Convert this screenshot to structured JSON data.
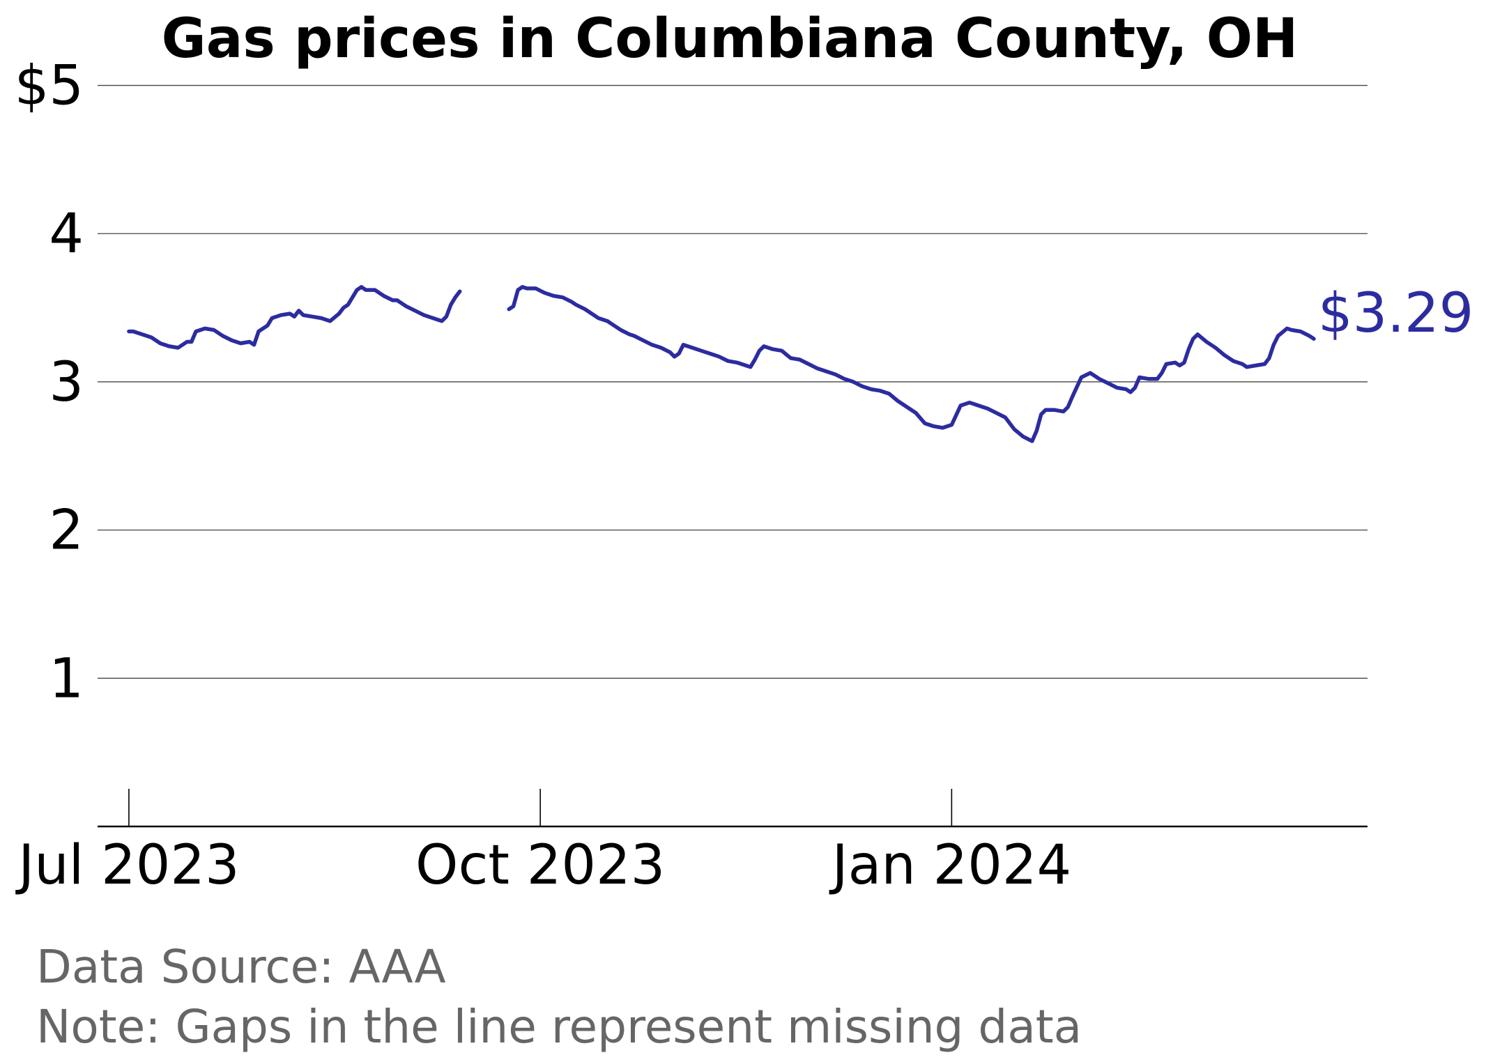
{
  "chart_data": {
    "type": "line",
    "title": "Gas prices in Columbiana County, OH",
    "xlabel": "",
    "ylabel": "",
    "ylim": [
      0,
      5.2
    ],
    "xlim": [
      "2023-06-24",
      "2024-04-03"
    ],
    "y_ticks": [
      {
        "value": 5,
        "label": "$5"
      },
      {
        "value": 4,
        "label": "4"
      },
      {
        "value": 3,
        "label": "3"
      },
      {
        "value": 2,
        "label": "2"
      },
      {
        "value": 1,
        "label": "1"
      }
    ],
    "x_ticks": [
      {
        "date": "2023-07-01",
        "label": "Jul 2023"
      },
      {
        "date": "2023-10-01",
        "label": "Oct 2023"
      },
      {
        "date": "2024-01-01",
        "label": "Jan 2024"
      }
    ],
    "grid": "horizontal",
    "legend": "none",
    "end_label": "$3.29",
    "series": [
      {
        "color": "#2c2ca0",
        "segments": [
          [
            [
              "2023-07-01",
              3.34
            ],
            [
              "2023-07-02",
              3.34
            ],
            [
              "2023-07-03",
              3.33
            ],
            [
              "2023-07-05",
              3.31
            ],
            [
              "2023-07-06",
              3.3
            ],
            [
              "2023-07-08",
              3.26
            ],
            [
              "2023-07-10",
              3.24
            ],
            [
              "2023-07-12",
              3.23
            ],
            [
              "2023-07-14",
              3.27
            ],
            [
              "2023-07-15",
              3.27
            ],
            [
              "2023-07-16",
              3.34
            ],
            [
              "2023-07-18",
              3.36
            ],
            [
              "2023-07-20",
              3.35
            ],
            [
              "2023-07-22",
              3.31
            ],
            [
              "2023-07-24",
              3.28
            ],
            [
              "2023-07-26",
              3.26
            ],
            [
              "2023-07-28",
              3.27
            ],
            [
              "2023-07-29",
              3.25
            ],
            [
              "2023-07-30",
              3.34
            ],
            [
              "2023-08-01",
              3.38
            ],
            [
              "2023-08-02",
              3.43
            ],
            [
              "2023-08-04",
              3.45
            ],
            [
              "2023-08-06",
              3.46
            ],
            [
              "2023-08-07",
              3.44
            ],
            [
              "2023-08-08",
              3.48
            ],
            [
              "2023-08-09",
              3.45
            ],
            [
              "2023-08-11",
              3.44
            ],
            [
              "2023-08-13",
              3.43
            ],
            [
              "2023-08-15",
              3.41
            ],
            [
              "2023-08-17",
              3.46
            ],
            [
              "2023-08-18",
              3.5
            ],
            [
              "2023-08-19",
              3.52
            ],
            [
              "2023-08-21",
              3.62
            ],
            [
              "2023-08-22",
              3.64
            ],
            [
              "2023-08-23",
              3.62
            ],
            [
              "2023-08-25",
              3.62
            ],
            [
              "2023-08-27",
              3.58
            ],
            [
              "2023-08-29",
              3.55
            ],
            [
              "2023-08-30",
              3.55
            ],
            [
              "2023-09-01",
              3.51
            ],
            [
              "2023-09-03",
              3.48
            ],
            [
              "2023-09-05",
              3.45
            ],
            [
              "2023-09-07",
              3.43
            ],
            [
              "2023-09-09",
              3.41
            ],
            [
              "2023-09-10",
              3.44
            ],
            [
              "2023-09-11",
              3.52
            ],
            [
              "2023-09-12",
              3.57
            ],
            [
              "2023-09-13",
              3.61
            ]
          ],
          [
            [
              "2023-09-24",
              3.49
            ],
            [
              "2023-09-25",
              3.51
            ],
            [
              "2023-09-26",
              3.62
            ],
            [
              "2023-09-27",
              3.64
            ],
            [
              "2023-09-28",
              3.63
            ],
            [
              "2023-09-30",
              3.63
            ],
            [
              "2023-10-02",
              3.6
            ],
            [
              "2023-10-04",
              3.58
            ],
            [
              "2023-10-06",
              3.57
            ],
            [
              "2023-10-08",
              3.54
            ],
            [
              "2023-10-09",
              3.52
            ],
            [
              "2023-10-11",
              3.49
            ],
            [
              "2023-10-13",
              3.45
            ],
            [
              "2023-10-14",
              3.43
            ],
            [
              "2023-10-16",
              3.41
            ],
            [
              "2023-10-17",
              3.39
            ],
            [
              "2023-10-19",
              3.35
            ],
            [
              "2023-10-21",
              3.32
            ],
            [
              "2023-10-22",
              3.31
            ],
            [
              "2023-10-24",
              3.28
            ],
            [
              "2023-10-26",
              3.25
            ],
            [
              "2023-10-28",
              3.23
            ],
            [
              "2023-10-30",
              3.2
            ],
            [
              "2023-10-31",
              3.17
            ],
            [
              "2023-11-01",
              3.19
            ],
            [
              "2023-11-02",
              3.25
            ],
            [
              "2023-11-04",
              3.23
            ],
            [
              "2023-11-06",
              3.21
            ],
            [
              "2023-11-08",
              3.19
            ],
            [
              "2023-11-10",
              3.17
            ],
            [
              "2023-11-12",
              3.14
            ],
            [
              "2023-11-14",
              3.13
            ],
            [
              "2023-11-16",
              3.11
            ],
            [
              "2023-11-17",
              3.1
            ],
            [
              "2023-11-18",
              3.15
            ],
            [
              "2023-11-19",
              3.21
            ],
            [
              "2023-11-20",
              3.24
            ],
            [
              "2023-11-22",
              3.22
            ],
            [
              "2023-11-24",
              3.21
            ],
            [
              "2023-11-26",
              3.16
            ],
            [
              "2023-11-28",
              3.15
            ],
            [
              "2023-11-30",
              3.12
            ],
            [
              "2023-12-02",
              3.09
            ],
            [
              "2023-12-04",
              3.07
            ],
            [
              "2023-12-06",
              3.05
            ],
            [
              "2023-12-08",
              3.02
            ],
            [
              "2023-12-10",
              3.0
            ],
            [
              "2023-12-12",
              2.97
            ],
            [
              "2023-12-14",
              2.95
            ],
            [
              "2023-12-16",
              2.94
            ],
            [
              "2023-12-18",
              2.92
            ],
            [
              "2023-12-20",
              2.87
            ],
            [
              "2023-12-22",
              2.83
            ],
            [
              "2023-12-24",
              2.79
            ],
            [
              "2023-12-26",
              2.72
            ],
            [
              "2023-12-28",
              2.7
            ],
            [
              "2023-12-30",
              2.69
            ],
            [
              "2024-01-01",
              2.71
            ],
            [
              "2024-01-03",
              2.84
            ],
            [
              "2024-01-05",
              2.86
            ],
            [
              "2024-01-07",
              2.84
            ],
            [
              "2024-01-09",
              2.82
            ],
            [
              "2024-01-11",
              2.79
            ],
            [
              "2024-01-13",
              2.76
            ],
            [
              "2024-01-15",
              2.68
            ],
            [
              "2024-01-17",
              2.63
            ],
            [
              "2024-01-19",
              2.6
            ],
            [
              "2024-01-20",
              2.67
            ],
            [
              "2024-01-21",
              2.78
            ],
            [
              "2024-01-22",
              2.81
            ],
            [
              "2024-01-24",
              2.81
            ],
            [
              "2024-01-26",
              2.8
            ],
            [
              "2024-01-27",
              2.83
            ],
            [
              "2024-01-28",
              2.9
            ],
            [
              "2024-01-30",
              3.03
            ],
            [
              "2024-02-01",
              3.06
            ],
            [
              "2024-02-03",
              3.02
            ],
            [
              "2024-02-05",
              2.99
            ],
            [
              "2024-02-07",
              2.96
            ],
            [
              "2024-02-09",
              2.95
            ],
            [
              "2024-02-10",
              2.93
            ],
            [
              "2024-02-11",
              2.96
            ],
            [
              "2024-02-12",
              3.03
            ],
            [
              "2024-02-14",
              3.02
            ],
            [
              "2024-02-16",
              3.02
            ],
            [
              "2024-02-17",
              3.06
            ],
            [
              "2024-02-18",
              3.12
            ],
            [
              "2024-02-20",
              3.13
            ],
            [
              "2024-02-21",
              3.11
            ],
            [
              "2024-02-22",
              3.13
            ],
            [
              "2024-02-23",
              3.22
            ],
            [
              "2024-02-24",
              3.29
            ],
            [
              "2024-02-25",
              3.32
            ],
            [
              "2024-02-27",
              3.27
            ],
            [
              "2024-02-29",
              3.23
            ],
            [
              "2024-03-02",
              3.18
            ],
            [
              "2024-03-04",
              3.14
            ],
            [
              "2024-03-06",
              3.12
            ],
            [
              "2024-03-07",
              3.1
            ],
            [
              "2024-03-09",
              3.11
            ],
            [
              "2024-03-11",
              3.12
            ],
            [
              "2024-03-12",
              3.16
            ],
            [
              "2024-03-13",
              3.25
            ],
            [
              "2024-03-14",
              3.31
            ],
            [
              "2024-03-16",
              3.36
            ],
            [
              "2024-03-17",
              3.35
            ],
            [
              "2024-03-19",
              3.34
            ],
            [
              "2024-03-21",
              3.31
            ],
            [
              "2024-03-22",
              3.29
            ]
          ]
        ]
      }
    ]
  },
  "footer": {
    "source": "Data Source: AAA",
    "note": "Note: Gaps in the line represent missing data"
  }
}
